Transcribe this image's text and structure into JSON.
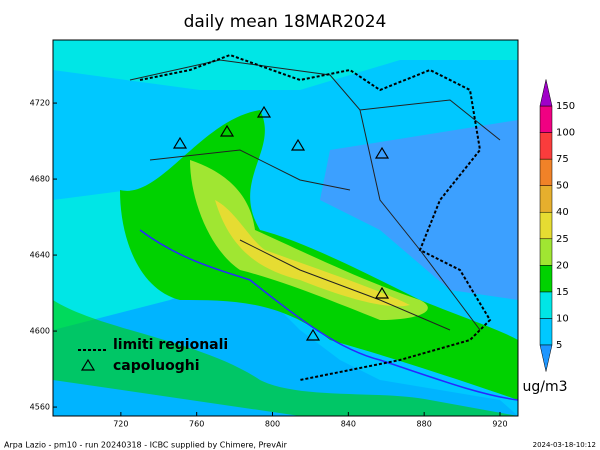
{
  "title": "daily mean 18MAR2024",
  "map": {
    "xlim": [
      684.2,
      929.5
    ],
    "ylim": [
      4555.3,
      4753.2
    ],
    "xticks": [
      720,
      760,
      800,
      840,
      880,
      920
    ],
    "yticks": [
      4560,
      4600,
      4640,
      4680,
      4720
    ]
  },
  "colorbar": {
    "levels": [
      5,
      10,
      15,
      20,
      25,
      40,
      50,
      75,
      100,
      150
    ],
    "colors": [
      "#1e96ff",
      "#00c8ff",
      "#00e6e6",
      "#00d200",
      "#a0e632",
      "#e6dc32",
      "#e6af2d",
      "#f08228",
      "#fa3c3c",
      "#f00082",
      "#a000c8"
    ],
    "unit": "ug/m3"
  },
  "legend": {
    "border": "limiti regionali",
    "cities": "capoluoghi"
  },
  "footer": {
    "left": "Arpa Lazio - pm10 - run 20240318 - ICBC supplied by Chimere, PrevAir",
    "right": "2024-03-18-10:12"
  }
}
